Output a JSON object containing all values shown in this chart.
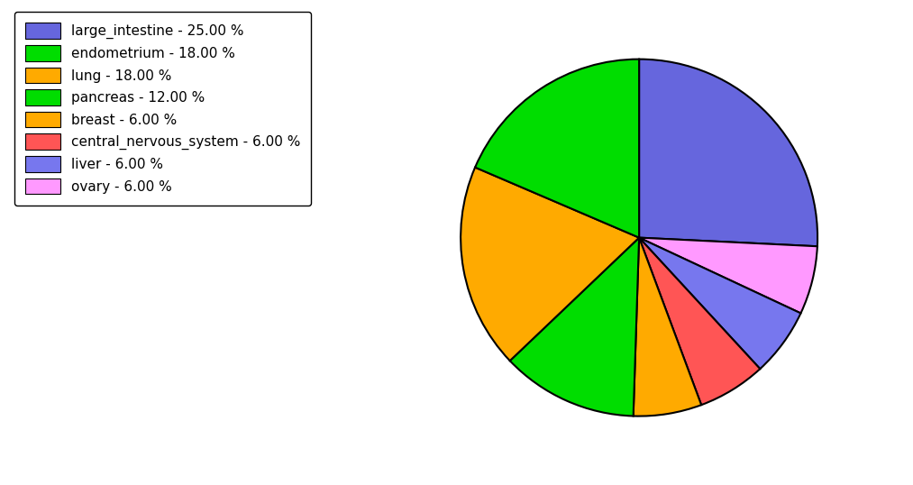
{
  "labels": [
    "large_intestine - 25.00 %",
    "endometrium - 18.00 %",
    "lung - 18.00 %",
    "pancreas - 12.00 %",
    "breast - 6.00 %",
    "central_nervous_system - 6.00 %",
    "liver - 6.00 %",
    "ovary - 6.00 %"
  ],
  "sizes": [
    25,
    18,
    18,
    12,
    6,
    6,
    6,
    6
  ],
  "colors": [
    "#6666dd",
    "#00dd00",
    "#ffaa00",
    "#00dd00",
    "#ffaa00",
    "#ff5555",
    "#7777ee",
    "#ff99ff"
  ],
  "startangle": 90,
  "figsize": [
    10.13,
    5.38
  ],
  "dpi": 100
}
